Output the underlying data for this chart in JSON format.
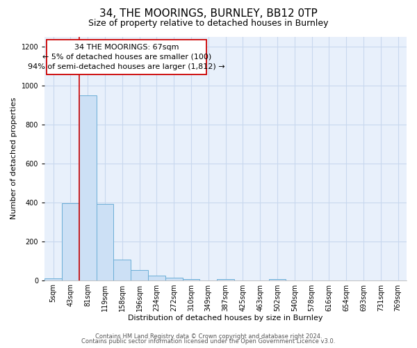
{
  "title": "34, THE MOORINGS, BURNLEY, BB12 0TP",
  "subtitle": "Size of property relative to detached houses in Burnley",
  "xlabel": "Distribution of detached houses by size in Burnley",
  "ylabel": "Number of detached properties",
  "bar_labels": [
    "5sqm",
    "43sqm",
    "81sqm",
    "119sqm",
    "158sqm",
    "196sqm",
    "234sqm",
    "272sqm",
    "310sqm",
    "349sqm",
    "387sqm",
    "425sqm",
    "463sqm",
    "502sqm",
    "540sqm",
    "578sqm",
    "616sqm",
    "654sqm",
    "693sqm",
    "731sqm",
    "769sqm"
  ],
  "bar_heights": [
    10,
    395,
    950,
    390,
    105,
    52,
    22,
    12,
    5,
    0,
    5,
    0,
    0,
    7,
    0,
    0,
    0,
    0,
    0,
    0,
    0
  ],
  "bar_color": "#cce0f5",
  "bar_edge_color": "#6baed6",
  "vline_color": "#cc0000",
  "box_edge_color": "#cc0000",
  "annotation_line1": "34 THE MOORINGS: 67sqm",
  "annotation_line2": "← 5% of detached houses are smaller (100)",
  "annotation_line3": "94% of semi-detached houses are larger (1,812) →",
  "ylim": [
    0,
    1250
  ],
  "yticks": [
    0,
    200,
    400,
    600,
    800,
    1000,
    1200
  ],
  "footer_line1": "Contains HM Land Registry data © Crown copyright and database right 2024.",
  "footer_line2": "Contains public sector information licensed under the Open Government Licence v3.0.",
  "plot_bg_color": "#e8f0fb",
  "grid_color": "#c8d8ee",
  "title_fontsize": 11,
  "subtitle_fontsize": 9,
  "axis_label_fontsize": 8,
  "tick_fontsize": 7,
  "annotation_fontsize": 8,
  "footer_fontsize": 6
}
